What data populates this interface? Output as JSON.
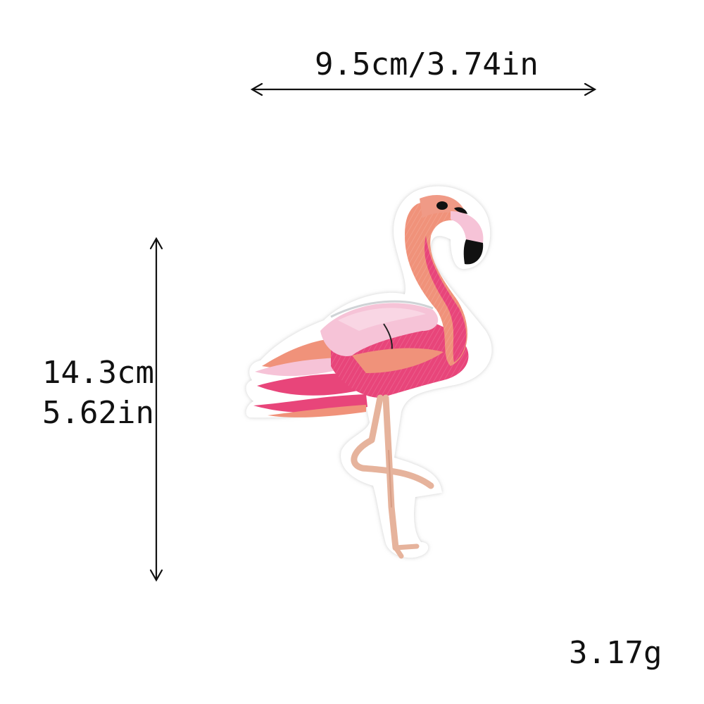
{
  "dimensions": {
    "width_label": "9.5cm/3.74in",
    "height_label_cm": "14.3cm",
    "height_label_in": "5.62in"
  },
  "weight": {
    "label": "3.17g"
  },
  "product": {
    "icon": "flamingo-patch",
    "colors": {
      "body_pink": "#e8457a",
      "salmon": "#f0927a",
      "light_pink": "#f6c3d7",
      "leg_tan": "#e6b39c",
      "beak_black": "#111111",
      "outline_white": "#ffffff"
    }
  },
  "arrows": {
    "color": "#111111"
  }
}
